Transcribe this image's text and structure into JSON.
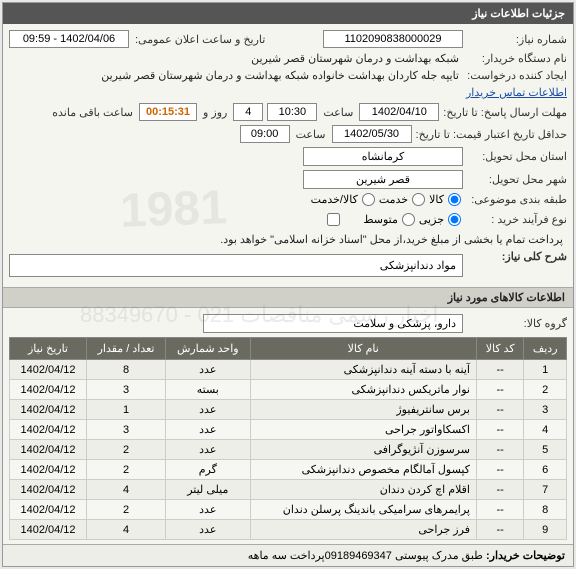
{
  "panel_title": "جزئیات اطلاعات نیاز",
  "fields": {
    "need_no_label": "شماره نیاز:",
    "need_no": "1102090838000029",
    "announce_label": "تاریخ و ساعت اعلان عمومی:",
    "announce_value": "1402/04/06 - 09:59",
    "buyer_label": "نام دستگاه خریدار:",
    "buyer_value": "شبکه بهداشت و درمان شهرستان قصر شیرین",
    "creator_label": "ایجاد کننده درخواست:",
    "creator_value": "تایپه جله کاردان بهداشت خانواده شبکه بهداشت و درمان شهرستان قصر شیرین",
    "contact_link": "اطلاعات تماس خریدار",
    "deadline_label": "مهلت ارسال پاسخ: تا تاریخ:",
    "deadline_date": "1402/04/10",
    "time_label": "ساعت",
    "deadline_time": "10:30",
    "day_and": "روز و",
    "days_left": "4",
    "remaining_label": "ساعت باقی مانده",
    "remaining_time": "00:15:31",
    "validity_label": "حداقل تاریخ اعتبار قیمت: تا تاریخ:",
    "validity_date": "1402/05/30",
    "validity_time": "09:00",
    "province_label": "استان محل تحویل:",
    "province_value": "کرمانشاه",
    "city_label": "شهر محل تحویل:",
    "city_value": "قصر شیرین",
    "classify_label": "طبقه بندی موضوعی:",
    "class_opt_goods": "کالا",
    "class_opt_service": "خدمت",
    "class_opt_both": "کالا/خدمت",
    "buy_type_label": "نوع فرآیند خرید :",
    "buy_opt_partial": "جزیی",
    "buy_opt_medium": "متوسط",
    "buy_note": "پرداخت تمام یا بخشی از مبلغ خرید،از محل \"اسناد خزانه اسلامی\" خواهد بود.",
    "desc_label": "شرح کلی نیاز:",
    "desc_value": "مواد دندانپزشکی",
    "goods_section": "اطلاعات کالاهای مورد نیاز",
    "group_label": "گروه کالا:",
    "group_value": "دارو، پزشکی و سلامت",
    "footer_label": "توضیحات خریدار:",
    "footer_value": "طبق مدرک پیوستی 09189469347پرداخت سه ماهه"
  },
  "table": {
    "headers": [
      "ردیف",
      "کد کالا",
      "نام کالا",
      "واحد شمارش",
      "تعداد / مقدار",
      "تاریخ نیاز"
    ],
    "rows": [
      [
        "1",
        "--",
        "آینه با دسته آینه دندانپزشکی",
        "عدد",
        "8",
        "1402/04/12"
      ],
      [
        "2",
        "--",
        "نوار ماتریکس دندانپزشکی",
        "بسته",
        "3",
        "1402/04/12"
      ],
      [
        "3",
        "--",
        "برس سانتریفیوژ",
        "عدد",
        "1",
        "1402/04/12"
      ],
      [
        "4",
        "--",
        "اکسکاواتور جراحی",
        "عدد",
        "3",
        "1402/04/12"
      ],
      [
        "5",
        "--",
        "سرسوزن آنژیوگرافی",
        "عدد",
        "2",
        "1402/04/12"
      ],
      [
        "6",
        "--",
        "کپسول آمالگام مخصوص دندانپزشکی",
        "گرم",
        "2",
        "1402/04/12"
      ],
      [
        "7",
        "--",
        "اقلام اچ کردن دندان",
        "میلی لیتر",
        "4",
        "1402/04/12"
      ],
      [
        "8",
        "--",
        "پرایمرهای سرامیکی باندینگ پرسلن دندان",
        "عدد",
        "2",
        "1402/04/12"
      ],
      [
        "9",
        "--",
        "فرز جراحی",
        "عدد",
        "4",
        "1402/04/12"
      ]
    ]
  },
  "watermark_big": "1981",
  "watermark_small": "اخبار رسمی مناقصات\n021 - 88349670"
}
